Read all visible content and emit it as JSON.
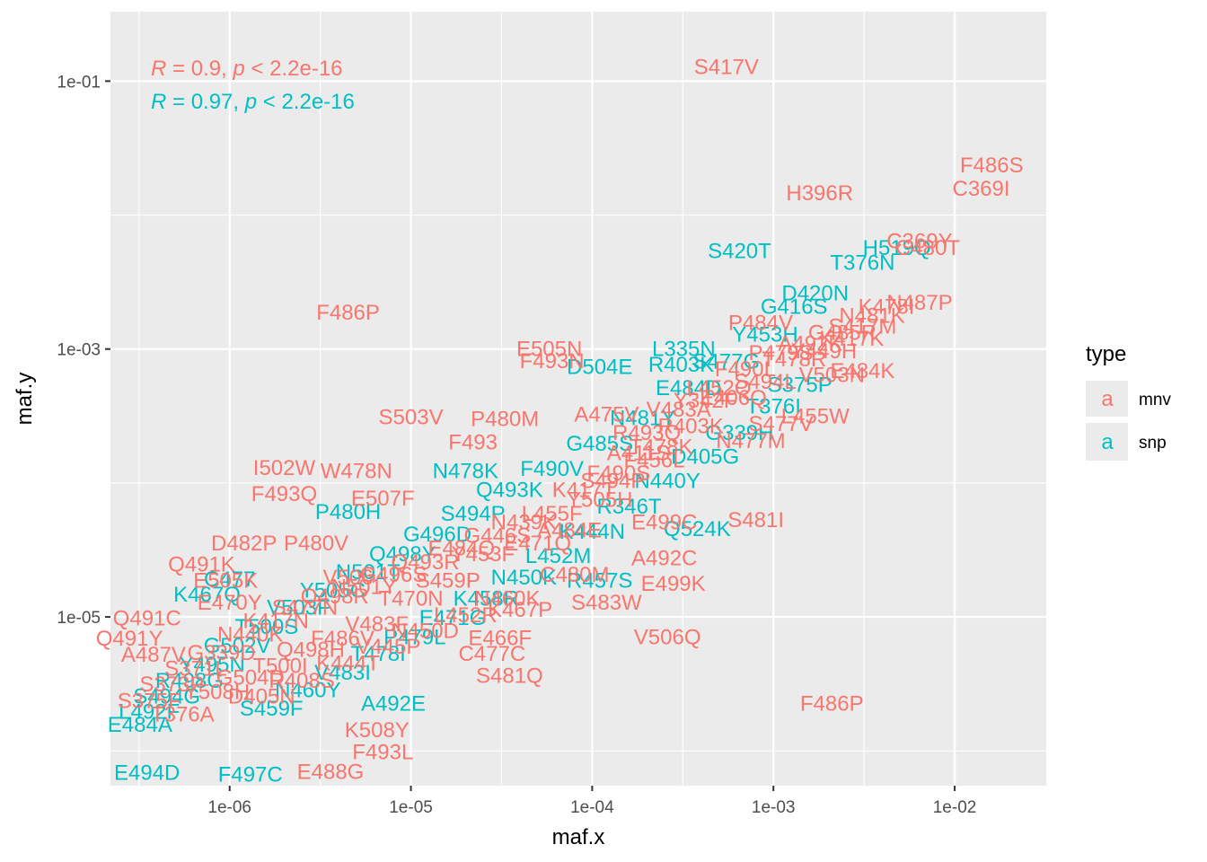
{
  "chart_data": {
    "type": "scatter",
    "xlabel": "maf.x",
    "ylabel": "maf.y",
    "log_x": true,
    "log_y": true,
    "xlim": [
      2.2e-07,
      0.032
    ],
    "ylim": [
      5.5e-07,
      0.33
    ],
    "x_ticks": [
      {
        "value": 1e-06,
        "label": "1e-06"
      },
      {
        "value": 1e-05,
        "label": "1e-05"
      },
      {
        "value": 0.0001,
        "label": "1e-04"
      },
      {
        "value": 0.001,
        "label": "1e-03"
      },
      {
        "value": 0.01,
        "label": "1e-02"
      }
    ],
    "y_ticks": [
      {
        "value": 1e-05,
        "label": "1e-05"
      },
      {
        "value": 0.001,
        "label": "1e-03"
      },
      {
        "value": 0.1,
        "label": "1e-01"
      }
    ],
    "grid": true,
    "legend": {
      "title": "type",
      "position": "right",
      "key_glyph": "a",
      "entries": [
        {
          "label": "mnv",
          "color": "#F8766D"
        },
        {
          "label": "snp",
          "color": "#00BFC4"
        }
      ]
    },
    "annotations": [
      {
        "color": "#F8766D",
        "r_symbol": "R",
        "r_text": " = 0.9, ",
        "p_symbol": "p",
        "p_text": " < 2.2e-16"
      },
      {
        "color": "#00BFC4",
        "r_symbol": "R",
        "r_text": " = 0.97, ",
        "p_symbol": "p",
        "p_text": " < 2.2e-16"
      }
    ],
    "series": [
      {
        "name": "mnv",
        "color": "#F8766D",
        "points": [
          {
            "label": "S417V",
            "x": 0.00055,
            "y": 0.13
          },
          {
            "label": "F486S",
            "x": 0.016,
            "y": 0.024
          },
          {
            "label": "C369I",
            "x": 0.014,
            "y": 0.016
          },
          {
            "label": "H396R",
            "x": 0.0018,
            "y": 0.0148
          },
          {
            "label": "F486P",
            "x": 4.5e-06,
            "y": 0.0019
          },
          {
            "label": "P484V",
            "x": 0.00085,
            "y": 0.0016
          },
          {
            "label": "E505N",
            "x": 5.8e-05,
            "y": 0.00102
          },
          {
            "label": "F493N",
            "x": 6e-05,
            "y": 0.00083
          },
          {
            "label": "S503V",
            "x": 1e-05,
            "y": 0.000315
          },
          {
            "label": "P480M",
            "x": 3.3e-05,
            "y": 0.000305
          },
          {
            "label": "F493",
            "x": 2.2e-05,
            "y": 0.000205
          },
          {
            "label": "I502W",
            "x": 2e-06,
            "y": 0.000132
          },
          {
            "label": "W478N",
            "x": 5e-06,
            "y": 0.000125
          },
          {
            "label": "F493Q",
            "x": 2e-06,
            "y": 8.4e-05
          },
          {
            "label": "E507F",
            "x": 7e-06,
            "y": 7.8e-05
          },
          {
            "label": "E499C",
            "x": 0.00025,
            "y": 5.2e-05
          },
          {
            "label": "S481I",
            "x": 0.0008,
            "y": 5.4e-05
          },
          {
            "label": "D482P",
            "x": 1.2e-06,
            "y": 3.6e-05
          },
          {
            "label": "P480V",
            "x": 3e-06,
            "y": 3.6e-05
          },
          {
            "label": "A492C",
            "x": 0.00025,
            "y": 2.8e-05
          },
          {
            "label": "Q491K",
            "x": 7e-07,
            "y": 2.5e-05
          },
          {
            "label": "E499K",
            "x": 0.00028,
            "y": 1.8e-05
          },
          {
            "label": "V506Q",
            "x": 0.00026,
            "y": 7.2e-06
          },
          {
            "label": "Q491C",
            "x": 3.5e-07,
            "y": 9.9e-06
          },
          {
            "label": "Q491Y",
            "x": 2.8e-07,
            "y": 7e-06
          },
          {
            "label": "A487V",
            "x": 3.8e-07,
            "y": 5.3e-06
          },
          {
            "label": "K467P",
            "x": 4e-05,
            "y": 1.15e-05
          },
          {
            "label": "S481Q",
            "x": 3.5e-05,
            "y": 3.7e-06
          },
          {
            "label": "F486P",
            "x": 0.0021,
            "y": 2.3e-06
          },
          {
            "label": "F493L",
            "x": 7e-06,
            "y": 1e-06
          },
          {
            "label": "E488G",
            "x": 3.6e-06,
            "y": 7.1e-07
          },
          {
            "label": "K508Y",
            "x": 6.5e-06,
            "y": 1.45e-06
          },
          {
            "label": "E470Y",
            "x": 1e-06,
            "y": 1.3e-05
          },
          {
            "label": "E505K",
            "x": 9.5e-07,
            "y": 1.9e-05
          },
          {
            "label": "V506",
            "x": 4.5e-06,
            "y": 2e-05
          },
          {
            "label": "C477C",
            "x": 2.8e-05,
            "y": 5.4e-06
          },
          {
            "label": "E466F",
            "x": 3.1e-05,
            "y": 7.1e-06
          },
          {
            "label": "C480M",
            "x": 8e-05,
            "y": 2.1e-05
          },
          {
            "label": "S483W",
            "x": 0.00012,
            "y": 1.3e-05
          },
          {
            "label": "C369Y",
            "x": 0.0064,
            "y": 0.0065
          },
          {
            "label": "C480T",
            "x": 0.0071,
            "y": 0.0058
          },
          {
            "label": "S417M",
            "x": 0.0031,
            "y": 0.0015
          },
          {
            "label": "N487P",
            "x": 0.0064,
            "y": 0.00225
          },
          {
            "label": "K417K",
            "x": 0.0027,
            "y": 0.00122
          },
          {
            "label": "A492K",
            "x": 0.0016,
            "y": 0.00112
          },
          {
            "label": "Y342F",
            "x": 0.00042,
            "y": 0.00042
          },
          {
            "label": "S477V",
            "x": 0.0011,
            "y": 0.00028
          },
          {
            "label": "N477M",
            "x": 0.00075,
            "y": 0.00021
          },
          {
            "label": "L455W",
            "x": 0.0017,
            "y": 0.00032
          },
          {
            "label": "E484K",
            "x": 0.0031,
            "y": 0.0007
          },
          {
            "label": "V503N",
            "x": 0.0021,
            "y": 0.00065
          },
          {
            "label": "A475V",
            "x": 0.00012,
            "y": 0.00033
          },
          {
            "label": "T478K",
            "x": 0.00024,
            "y": 0.00019
          },
          {
            "label": "F456L",
            "x": 0.00022,
            "y": 0.00015
          },
          {
            "label": "S494P",
            "x": 0.00013,
            "y": 0.000105
          },
          {
            "label": "Y505H",
            "x": 0.00011,
            "y": 7.6e-05
          },
          {
            "label": "L455F",
            "x": 6e-05,
            "y": 6e-05
          },
          {
            "label": "G446S",
            "x": 3e-05,
            "y": 4.1e-05
          },
          {
            "label": "E484Q",
            "x": 1.9e-05,
            "y": 3.3e-05
          },
          {
            "label": "Q493R",
            "x": 1.2e-05,
            "y": 2.6e-05
          },
          {
            "label": "G496S",
            "x": 8e-06,
            "y": 2.1e-05
          },
          {
            "label": "N501Y",
            "x": 5.5e-06,
            "y": 1.7e-05
          },
          {
            "label": "Q498R",
            "x": 3.8e-06,
            "y": 1.45e-05
          },
          {
            "label": "S477N",
            "x": 2.6e-06,
            "y": 1.2e-05
          },
          {
            "label": "K417N",
            "x": 1.8e-06,
            "y": 9.5e-06
          },
          {
            "label": "N440K",
            "x": 1.3e-06,
            "y": 7.5e-06
          },
          {
            "label": "G339D",
            "x": 9e-07,
            "y": 5.5e-06
          },
          {
            "label": "S371L",
            "x": 6.5e-07,
            "y": 4.2e-06
          },
          {
            "label": "S373P",
            "x": 4.8e-07,
            "y": 3.2e-06
          },
          {
            "label": "S375F",
            "x": 3.6e-07,
            "y": 2.4e-06
          },
          {
            "label": "T376A",
            "x": 5.5e-07,
            "y": 1.9e-06
          },
          {
            "label": "D405N",
            "x": 1.5e-06,
            "y": 2.6e-06
          },
          {
            "label": "R408S",
            "x": 2.5e-06,
            "y": 3.4e-06
          },
          {
            "label": "K444T",
            "x": 4.5e-06,
            "y": 4.6e-06
          },
          {
            "label": "V445P",
            "x": 7.5e-06,
            "y": 6.1e-06
          },
          {
            "label": "N450D",
            "x": 1.2e-05,
            "y": 8e-06
          },
          {
            "label": "L452R",
            "x": 2e-05,
            "y": 1.05e-05
          },
          {
            "label": "N460K",
            "x": 3.4e-05,
            "y": 1.4e-05
          },
          {
            "label": "E471Q",
            "x": 5e-05,
            "y": 3.6e-05
          },
          {
            "label": "A484E",
            "x": 7.5e-05,
            "y": 4.5e-05
          },
          {
            "label": "F490S",
            "x": 0.00014,
            "y": 0.00012
          },
          {
            "label": "R493Q",
            "x": 0.0002,
            "y": 0.00024
          },
          {
            "label": "V483A",
            "x": 0.0003,
            "y": 0.00036
          },
          {
            "label": "L452Q",
            "x": 0.0005,
            "y": 0.00052
          },
          {
            "label": "F490L",
            "x": 0.0007,
            "y": 0.00072
          },
          {
            "label": "S494L",
            "x": 0.0009,
            "y": 0.00058
          },
          {
            "label": "T478R",
            "x": 0.0013,
            "y": 0.00085
          },
          {
            "label": "Y449H",
            "x": 0.0019,
            "y": 0.00098
          },
          {
            "label": "G485R",
            "x": 0.0024,
            "y": 0.00135
          },
          {
            "label": "N481K",
            "x": 0.0035,
            "y": 0.0018
          },
          {
            "label": "K478I",
            "x": 0.0042,
            "y": 0.0021
          },
          {
            "label": "P479S",
            "x": 0.0011,
            "y": 0.00095
          },
          {
            "label": "E406Q",
            "x": 0.0006,
            "y": 0.00044
          },
          {
            "label": "R403K",
            "x": 0.00035,
            "y": 0.00027
          },
          {
            "label": "A411S",
            "x": 0.00018,
            "y": 0.00017
          },
          {
            "label": "K417T",
            "x": 9e-05,
            "y": 9e-05
          },
          {
            "label": "N439K",
            "x": 4.2e-05,
            "y": 5.2e-05
          },
          {
            "label": "Y453F",
            "x": 2.5e-05,
            "y": 3e-05
          },
          {
            "label": "S459P",
            "x": 1.6e-05,
            "y": 1.9e-05
          },
          {
            "label": "T470N",
            "x": 1e-05,
            "y": 1.4e-05
          },
          {
            "label": "V483F",
            "x": 6.5e-06,
            "y": 9e-06
          },
          {
            "label": "F486V",
            "x": 4.2e-06,
            "y": 7e-06
          },
          {
            "label": "Q498H",
            "x": 2.8e-06,
            "y": 5.8e-06
          },
          {
            "label": "T500I",
            "x": 1.9e-06,
            "y": 4.4e-06
          },
          {
            "label": "G504D",
            "x": 1.3e-06,
            "y": 3.6e-06
          },
          {
            "label": "Y508H",
            "x": 8.5e-07,
            "y": 2.8e-06
          }
        ]
      },
      {
        "name": "snp",
        "color": "#00BFC4",
        "points": [
          {
            "label": "S420T",
            "x": 0.00065,
            "y": 0.0055
          },
          {
            "label": "D504E",
            "x": 0.00011,
            "y": 0.00075
          },
          {
            "label": "N478K",
            "x": 2e-05,
            "y": 0.000125
          },
          {
            "label": "P480H",
            "x": 4.5e-06,
            "y": 6.2e-05
          },
          {
            "label": "Q524K",
            "x": 0.00038,
            "y": 4.6e-05
          },
          {
            "label": "R457S",
            "x": 0.00011,
            "y": 1.9e-05
          },
          {
            "label": "C477",
            "x": 1e-06,
            "y": 1.95e-05
          },
          {
            "label": "K467Q",
            "x": 7.5e-07,
            "y": 1.5e-05
          },
          {
            "label": "E494D",
            "x": 3.5e-07,
            "y": 7e-07
          },
          {
            "label": "F497C",
            "x": 1.3e-06,
            "y": 6.8e-07
          },
          {
            "label": "A492E",
            "x": 8e-06,
            "y": 2.3e-06
          },
          {
            "label": "L335N",
            "x": 0.00032,
            "y": 0.00102
          },
          {
            "label": "R403K",
            "x": 0.00031,
            "y": 0.00078
          },
          {
            "label": "H519Q",
            "x": 0.0048,
            "y": 0.0058
          },
          {
            "label": "T376N",
            "x": 0.0031,
            "y": 0.0045
          },
          {
            "label": "D420N",
            "x": 0.0017,
            "y": 0.00265
          },
          {
            "label": "G416S",
            "x": 0.0013,
            "y": 0.0021
          },
          {
            "label": "Y453H",
            "x": 0.0009,
            "y": 0.0013
          },
          {
            "label": "S477G",
            "x": 0.00055,
            "y": 0.00082
          },
          {
            "label": "E484D",
            "x": 0.00034,
            "y": 0.00052
          },
          {
            "label": "N481Y",
            "x": 0.00019,
            "y": 0.00031
          },
          {
            "label": "G485S",
            "x": 0.00011,
            "y": 0.0002
          },
          {
            "label": "F490V",
            "x": 6e-05,
            "y": 0.00013
          },
          {
            "label": "Q493K",
            "x": 3.5e-05,
            "y": 9e-05
          },
          {
            "label": "S494P",
            "x": 2.2e-05,
            "y": 6e-05
          },
          {
            "label": "G496D",
            "x": 1.4e-05,
            "y": 4.2e-05
          },
          {
            "label": "Q498Y",
            "x": 9e-06,
            "y": 3e-05
          },
          {
            "label": "N501T",
            "x": 5.8e-06,
            "y": 2.2e-05
          },
          {
            "label": "Y505C",
            "x": 3.7e-06,
            "y": 1.6e-05
          },
          {
            "label": "V503F",
            "x": 2.4e-06,
            "y": 1.2e-05
          },
          {
            "label": "T500S",
            "x": 1.6e-06,
            "y": 8.6e-06
          },
          {
            "label": "G502V",
            "x": 1.1e-06,
            "y": 6.2e-06
          },
          {
            "label": "Y495N",
            "x": 8e-07,
            "y": 4.5e-06
          },
          {
            "label": "R498G",
            "x": 6e-07,
            "y": 3.4e-06
          },
          {
            "label": "S494G",
            "x": 4.5e-07,
            "y": 2.6e-06
          },
          {
            "label": "L492F",
            "x": 3.6e-07,
            "y": 2e-06
          },
          {
            "label": "E484A",
            "x": 3.2e-07,
            "y": 1.6e-06
          },
          {
            "label": "S459F",
            "x": 1.7e-06,
            "y": 2.1e-06
          },
          {
            "label": "N460Y",
            "x": 2.7e-06,
            "y": 2.9e-06
          },
          {
            "label": "V483I",
            "x": 4.2e-06,
            "y": 3.9e-06
          },
          {
            "label": "T478I",
            "x": 6.6e-06,
            "y": 5.4e-06
          },
          {
            "label": "P479L",
            "x": 1.05e-05,
            "y": 7.2e-06
          },
          {
            "label": "E471G",
            "x": 1.7e-05,
            "y": 1e-05
          },
          {
            "label": "K458R",
            "x": 2.6e-05,
            "y": 1.4e-05
          },
          {
            "label": "N450K",
            "x": 4.2e-05,
            "y": 2e-05
          },
          {
            "label": "L452M",
            "x": 6.5e-05,
            "y": 2.9e-05
          },
          {
            "label": "K444N",
            "x": 0.0001,
            "y": 4.4e-05
          },
          {
            "label": "R346T",
            "x": 0.00016,
            "y": 6.8e-05
          },
          {
            "label": "N440Y",
            "x": 0.00026,
            "y": 0.000105
          },
          {
            "label": "D405G",
            "x": 0.00042,
            "y": 0.00016
          },
          {
            "label": "G339H",
            "x": 0.00065,
            "y": 0.00024
          },
          {
            "label": "T376I",
            "x": 0.001,
            "y": 0.00038
          },
          {
            "label": "S375P",
            "x": 0.0014,
            "y": 0.00055
          }
        ]
      }
    ]
  }
}
